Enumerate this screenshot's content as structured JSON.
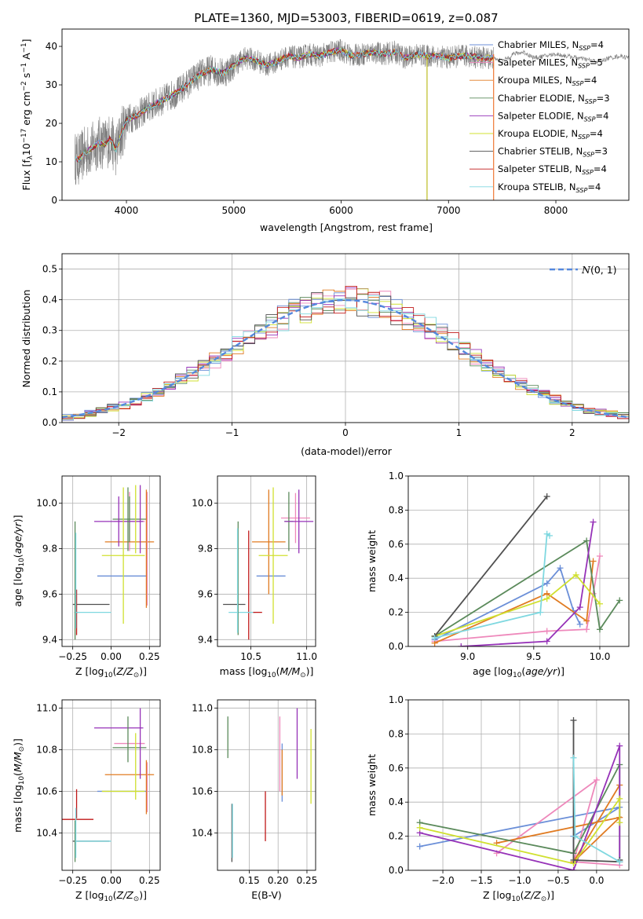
{
  "figure": {
    "title": "PLATE=1360, MJD=53003, FIBERID=0619, z=0.087"
  },
  "chart_data": [
    {
      "id": "spectrum",
      "type": "line",
      "xlabel": "wavelength [Angstrom, rest frame]",
      "ylabel_parts": [
        "Flux [f",
        "λ",
        "10",
        "−17",
        " erg cm",
        "−2",
        " s",
        "−1",
        " A",
        "−1",
        "]"
      ],
      "xlim": [
        3400,
        8680
      ],
      "ylim": [
        0,
        44.5
      ],
      "xticks": [
        4000,
        5000,
        6000,
        7000,
        8000
      ],
      "yticks": [
        0,
        10,
        20,
        30,
        40
      ],
      "grid": false,
      "legend_placement": "upper right",
      "observed_color": "#808080",
      "data_x": [
        3520,
        3550,
        3600,
        3650,
        3700,
        3750,
        3800,
        3850,
        3900,
        3950,
        4000,
        4100,
        4200,
        4300,
        4400,
        4500,
        4600,
        4700,
        4800,
        4900,
        5000,
        5100,
        5200,
        5300,
        5400,
        5500,
        5600,
        5700,
        5800,
        5900,
        6000,
        6100,
        6200,
        6300,
        6400,
        6500,
        6600,
        6700,
        6800,
        6900,
        7000,
        7100,
        7200,
        7300,
        7420
      ],
      "data_y": [
        11,
        10.5,
        12,
        13,
        14,
        15,
        14.5,
        16,
        13,
        17,
        21,
        22,
        24,
        25.5,
        27,
        28.5,
        31,
        33,
        34,
        33,
        35,
        37,
        36.5,
        35,
        36,
        37.5,
        37,
        38,
        37.5,
        38.5,
        39,
        37.5,
        38,
        38.5,
        38,
        38.5,
        37,
        38,
        37.5,
        37.5,
        37,
        37.5,
        37.5,
        37,
        37
      ],
      "obs_ext_x": [
        7420,
        7500,
        7600,
        7700,
        7800,
        7900,
        8000,
        8100,
        8200,
        8300,
        8400,
        8500,
        8600,
        8680
      ],
      "obs_ext_y": [
        37,
        36,
        38,
        38.5,
        37,
        37.5,
        38,
        37.5,
        37,
        36.5,
        36,
        37,
        37.5,
        37
      ],
      "dropouts": [
        {
          "x": 6800,
          "color": "#bcbd22"
        },
        {
          "x": 7420,
          "color": "#ee7733"
        }
      ],
      "series": [
        {
          "name_parts": [
            "Chabrier MILES, N",
            "SSP",
            "=4"
          ],
          "color": "#6b8fd8"
        },
        {
          "name_parts": [
            "Salpeter MILES, N",
            "SSP",
            "=5"
          ],
          "color": "#ee88bb"
        },
        {
          "name_parts": [
            "Kroupa MILES, N",
            "SSP",
            "=4"
          ],
          "color": "#e07b22"
        },
        {
          "name_parts": [
            "Chabrier ELODIE, N",
            "SSP",
            "=3"
          ],
          "color": "#5b8a5b"
        },
        {
          "name_parts": [
            "Salpeter ELODIE, N",
            "SSP",
            "=4"
          ],
          "color": "#9632b8"
        },
        {
          "name_parts": [
            "Kroupa ELODIE, N",
            "SSP",
            "=4"
          ],
          "color": "#d0e030"
        },
        {
          "name_parts": [
            "Chabrier STELIB, N",
            "SSP",
            "=3"
          ],
          "color": "#505050"
        },
        {
          "name_parts": [
            "Salpeter STELIB, N",
            "SSP",
            "=4"
          ],
          "color": "#c01818"
        },
        {
          "name_parts": [
            "Kroupa STELIB, N",
            "SSP",
            "=4"
          ],
          "color": "#7fd8e0"
        }
      ]
    },
    {
      "id": "residuals",
      "type": "histogram",
      "xlabel": "(data-model)/error",
      "ylabel": "Normed distribution",
      "xlim": [
        -2.5,
        2.5
      ],
      "ylim": [
        0,
        0.55
      ],
      "xticks": [
        -2,
        -1,
        0,
        1,
        2
      ],
      "yticks": [
        0.0,
        0.1,
        0.2,
        0.3,
        0.4,
        0.5
      ],
      "grid": true,
      "legend_label_main": "N",
      "legend_label_rest": "(0, 1)",
      "bin_width": 0.1,
      "gaussian_color": "#5588dd",
      "series_colors": [
        "#6b8fd8",
        "#ee88bb",
        "#e07b22",
        "#5b8a5b",
        "#9632b8",
        "#d0e030",
        "#505050",
        "#c01818",
        "#7fd8e0"
      ]
    },
    {
      "id": "age-vs-z",
      "type": "errorbar",
      "xlabel_parts": [
        "Z [log",
        "10",
        "(",
        "Z/Z",
        "⊙",
        ")]"
      ],
      "ylabel_parts": [
        "age  [log",
        "10",
        "(",
        "age/yr",
        ")]"
      ],
      "xlim": [
        -0.32,
        0.32
      ],
      "ylim": [
        9.37,
        10.12
      ],
      "xticks": [
        -0.25,
        0.0,
        0.25
      ],
      "xtick_labels": [
        "−0.25",
        "0.00",
        "0.25"
      ],
      "yticks": [
        9.4,
        9.6,
        9.8,
        10.0
      ],
      "grid": true,
      "points": [
        {
          "x": 0.07,
          "xerr": 0.16,
          "y": 9.68,
          "yerr": 0.0,
          "color": "#6b8fd8"
        },
        {
          "x": 0.12,
          "xerr": 0.1,
          "y": 9.92,
          "yerr": 0.13,
          "color": "#ee88bb"
        },
        {
          "x": 0.12,
          "xerr": 0.16,
          "y": 9.83,
          "yerr": 0.0,
          "color": "#e07b22"
        },
        {
          "x": 0.12,
          "xerr": 0.11,
          "y": 9.93,
          "yerr": 0.1,
          "color": "#5b8a5b"
        },
        {
          "x": 0.05,
          "xerr": 0.16,
          "y": 9.92,
          "yerr": 0.11,
          "color": "#9632b8"
        },
        {
          "x": 0.08,
          "xerr": 0.14,
          "y": 9.77,
          "yerr": 0.3,
          "color": "#d0e030"
        },
        {
          "x": -0.13,
          "xerr": 0.12,
          "y": 9.555,
          "yerr": 0.0,
          "color": "#505050"
        },
        {
          "x": -0.225,
          "xerr": 0.01,
          "y": 9.52,
          "yerr": 0.1,
          "color": "#c01818"
        },
        {
          "x": -0.12,
          "xerr": 0.12,
          "y": 9.52,
          "yerr": 0.0,
          "color": "#7fd8e0"
        },
        {
          "x": -0.235,
          "xerr": 0.0,
          "y": 9.66,
          "yerr": 0.26,
          "color": "#5b8a5b"
        },
        {
          "x": -0.23,
          "xerr": 0.0,
          "y": 9.66,
          "yerr": 0.21,
          "color": "#7fd8e0"
        },
        {
          "x": 0.235,
          "xerr": 0.0,
          "y": 9.8,
          "yerr": 0.25,
          "color": "#ee88bb"
        },
        {
          "x": 0.23,
          "xerr": 0.0,
          "y": 9.8,
          "yerr": 0.26,
          "color": "#e07b22"
        },
        {
          "x": 0.19,
          "xerr": 0.0,
          "y": 9.93,
          "yerr": 0.15,
          "color": "#9632b8"
        },
        {
          "x": 0.16,
          "xerr": 0.0,
          "y": 9.93,
          "yerr": 0.15,
          "color": "#d0e030"
        },
        {
          "x": 0.11,
          "xerr": 0.0,
          "y": 9.93,
          "yerr": 0.14,
          "color": "#5b8a5b"
        }
      ]
    },
    {
      "id": "age-vs-mass",
      "type": "errorbar",
      "xlabel_parts": [
        "mass [log",
        "10",
        "(",
        "M/M",
        "⊙",
        ")]"
      ],
      "xlim": [
        10.2,
        11.08
      ],
      "ylim": [
        9.37,
        10.12
      ],
      "xticks": [
        10.5,
        11.0
      ],
      "yticks": [
        9.4,
        9.6,
        9.8,
        10.0
      ],
      "grid": true,
      "points": [
        {
          "x": 10.68,
          "xerr": 0.13,
          "y": 9.68,
          "yerr": 0.0,
          "color": "#6b8fd8"
        },
        {
          "x": 10.9,
          "xerr": 0.13,
          "y": 9.935,
          "yerr": 0.11,
          "color": "#ee88bb"
        },
        {
          "x": 10.66,
          "xerr": 0.15,
          "y": 9.83,
          "yerr": 0.23,
          "color": "#e07b22"
        },
        {
          "x": 10.84,
          "xerr": 0.04,
          "y": 9.92,
          "yerr": 0.13,
          "color": "#5b8a5b"
        },
        {
          "x": 10.93,
          "xerr": 0.13,
          "y": 9.92,
          "yerr": 0.14,
          "color": "#9632b8"
        },
        {
          "x": 10.7,
          "xerr": 0.13,
          "y": 9.77,
          "yerr": 0.3,
          "color": "#d0e030"
        },
        {
          "x": 10.35,
          "xerr": 0.1,
          "y": 9.555,
          "yerr": 0.0,
          "color": "#505050"
        },
        {
          "x": 10.48,
          "xerr": 0.0,
          "y": 9.64,
          "yerr": 0.24,
          "color": "#c01818"
        },
        {
          "x": 10.42,
          "xerr": 0.12,
          "y": 9.52,
          "yerr": 0.0,
          "color": "#7fd8e0"
        },
        {
          "x": 10.56,
          "xerr": 0.04,
          "y": 9.52,
          "yerr": 0.0,
          "color": "#c01818"
        },
        {
          "x": 10.385,
          "xerr": 0.0,
          "y": 9.67,
          "yerr": 0.25,
          "color": "#5b8a5b"
        },
        {
          "x": 10.38,
          "xerr": 0.0,
          "y": 9.66,
          "yerr": 0.23,
          "color": "#7fd8e0"
        }
      ]
    },
    {
      "id": "weight-vs-age",
      "type": "line",
      "xlabel_parts": [
        "age  [log",
        "10",
        "(",
        "age/yr",
        ")]"
      ],
      "ylabel": "mass weight",
      "xlim": [
        8.55,
        10.22
      ],
      "ylim": [
        0,
        1.0
      ],
      "xticks": [
        9.0,
        9.5,
        10.0
      ],
      "yticks": [
        0.0,
        0.2,
        0.4,
        0.6,
        0.8,
        1.0
      ],
      "grid": true,
      "series": [
        {
          "color": "#6b8fd8",
          "x": [
            8.75,
            9.6,
            9.7,
            9.8,
            9.85
          ],
          "y": [
            0.04,
            0.37,
            0.46,
            0.21,
            0.13
          ]
        },
        {
          "color": "#ee88bb",
          "x": [
            8.75,
            9.6,
            9.9,
            9.95,
            10.0
          ],
          "y": [
            0.03,
            0.09,
            0.1,
            0.31,
            0.53
          ]
        },
        {
          "color": "#e07b22",
          "x": [
            8.75,
            9.6,
            9.9,
            9.95
          ],
          "y": [
            0.02,
            0.31,
            0.15,
            0.5
          ]
        },
        {
          "color": "#5b8a5b",
          "x": [
            8.75,
            9.9,
            10.0,
            10.15
          ],
          "y": [
            0.06,
            0.62,
            0.1,
            0.27
          ]
        },
        {
          "color": "#9632b8",
          "x": [
            8.95,
            9.6,
            9.85,
            9.95
          ],
          "y": [
            0.0,
            0.03,
            0.23,
            0.73
          ]
        },
        {
          "color": "#d0e030",
          "x": [
            8.75,
            9.6,
            9.82,
            10.0
          ],
          "y": [
            0.06,
            0.28,
            0.42,
            0.25
          ]
        },
        {
          "color": "#505050",
          "x": [
            8.75,
            9.6
          ],
          "y": [
            0.06,
            0.88
          ]
        },
        {
          "color": "#7fd8e0",
          "x": [
            8.75,
            9.55,
            9.6,
            9.62
          ],
          "y": [
            0.05,
            0.2,
            0.66,
            0.65
          ]
        }
      ]
    },
    {
      "id": "mass-vs-z",
      "type": "errorbar",
      "xlabel_parts": [
        "Z [log",
        "10",
        "(",
        "Z/Z",
        "⊙",
        ")]"
      ],
      "ylabel_parts": [
        "mass [log",
        "10",
        "(",
        "M/M",
        "⊙",
        ")]"
      ],
      "xlim": [
        -0.32,
        0.32
      ],
      "ylim": [
        10.22,
        11.04
      ],
      "xticks": [
        -0.25,
        0.0,
        0.25
      ],
      "xtick_labels": [
        "−0.25",
        "0.00",
        "0.25"
      ],
      "yticks": [
        10.4,
        10.6,
        10.8,
        11.0
      ],
      "grid": true,
      "points": [
        {
          "x": 0.07,
          "xerr": 0.16,
          "y": 10.6,
          "yerr": 0.0,
          "color": "#6b8fd8"
        },
        {
          "x": 0.12,
          "xerr": 0.1,
          "y": 10.83,
          "yerr": 0.0,
          "color": "#ee88bb"
        },
        {
          "x": 0.12,
          "xerr": 0.16,
          "y": 10.68,
          "yerr": 0.0,
          "color": "#e07b22"
        },
        {
          "x": 0.12,
          "xerr": 0.11,
          "y": 10.81,
          "yerr": 0.0,
          "color": "#5b8a5b"
        },
        {
          "x": 0.05,
          "xerr": 0.16,
          "y": 10.905,
          "yerr": 0.0,
          "color": "#9632b8"
        },
        {
          "x": 0.08,
          "xerr": 0.14,
          "y": 10.6,
          "yerr": 0.0,
          "color": "#d0e030"
        },
        {
          "x": -0.13,
          "xerr": 0.12,
          "y": 10.36,
          "yerr": 0.0,
          "color": "#505050"
        },
        {
          "x": -0.225,
          "xerr": 0.11,
          "y": 10.465,
          "yerr": 0.0,
          "color": "#c01818"
        },
        {
          "x": -0.12,
          "xerr": 0.12,
          "y": 10.36,
          "yerr": 0.0,
          "color": "#7fd8e0"
        },
        {
          "x": 0.11,
          "xerr": 0.0,
          "y": 10.85,
          "yerr": 0.11,
          "color": "#5b8a5b"
        },
        {
          "x": 0.16,
          "xerr": 0.0,
          "y": 10.72,
          "yerr": 0.16,
          "color": "#d0e030"
        },
        {
          "x": 0.19,
          "xerr": 0.0,
          "y": 10.83,
          "yerr": 0.17,
          "color": "#9632b8"
        },
        {
          "x": 0.235,
          "xerr": 0.0,
          "y": 10.62,
          "yerr": 0.12,
          "color": "#ee88bb"
        },
        {
          "x": 0.23,
          "xerr": 0.0,
          "y": 10.62,
          "yerr": 0.13,
          "color": "#e07b22"
        },
        {
          "x": -0.225,
          "xerr": 0.0,
          "y": 10.54,
          "yerr": 0.07,
          "color": "#c01818"
        },
        {
          "x": -0.235,
          "xerr": 0.0,
          "y": 10.36,
          "yerr": 0.1,
          "color": "#5b8a5b"
        },
        {
          "x": -0.23,
          "xerr": 0.0,
          "y": 10.4,
          "yerr": 0.12,
          "color": "#7fd8e0"
        }
      ]
    },
    {
      "id": "mass-vs-ebv",
      "type": "errorbar",
      "xlabel": "E(B-V)",
      "xlim": [
        0.095,
        0.265
      ],
      "ylim": [
        10.22,
        11.04
      ],
      "xticks": [
        0.15,
        0.2,
        0.25
      ],
      "xtick_labels": [
        "0.15",
        "0.20",
        "0.25"
      ],
      "yticks": [
        10.4,
        10.6,
        10.8,
        11.0
      ],
      "grid": true,
      "points": [
        {
          "x": 0.113,
          "y": 10.86,
          "yerr": 0.1,
          "color": "#5b8a5b"
        },
        {
          "x": 0.12,
          "y": 10.4,
          "yerr": 0.14,
          "color": "#505050"
        },
        {
          "x": 0.121,
          "y": 10.41,
          "yerr": 0.13,
          "color": "#7fd8e0"
        },
        {
          "x": 0.178,
          "y": 10.48,
          "yerr": 0.12,
          "color": "#c01818"
        },
        {
          "x": 0.203,
          "y": 10.78,
          "yerr": 0.18,
          "color": "#ee88bb"
        },
        {
          "x": 0.207,
          "y": 10.69,
          "yerr": 0.14,
          "color": "#6b8fd8"
        },
        {
          "x": 0.207,
          "y": 10.69,
          "yerr": 0.11,
          "color": "#e07b22"
        },
        {
          "x": 0.233,
          "y": 10.83,
          "yerr": 0.17,
          "color": "#9632b8"
        },
        {
          "x": 0.257,
          "y": 10.72,
          "yerr": 0.18,
          "color": "#d0e030"
        }
      ]
    },
    {
      "id": "weight-vs-z",
      "type": "line",
      "xlabel_parts": [
        "Z [log",
        "10",
        "(",
        "Z/Z",
        "⊙",
        ")]"
      ],
      "ylabel": "mass weight",
      "xlim": [
        -2.45,
        0.42
      ],
      "ylim": [
        0,
        1.0
      ],
      "xticks": [
        -2.0,
        -1.5,
        -1.0,
        -0.5,
        0.0
      ],
      "xtick_labels": [
        "−2.0",
        "−1.5",
        "−1.0",
        "−0.5",
        "0.0"
      ],
      "yticks": [
        0.0,
        0.2,
        0.4,
        0.6,
        0.8,
        1.0
      ],
      "grid": true,
      "series": [
        {
          "color": "#6b8fd8",
          "x": [
            -2.3,
            0.3,
            -0.3,
            -0.3
          ],
          "y": [
            0.14,
            0.37,
            0.2,
            0.05
          ]
        },
        {
          "color": "#ee88bb",
          "x": [
            -1.3,
            0.0,
            -0.3,
            0.3
          ],
          "y": [
            0.1,
            0.53,
            0.05,
            0.03
          ]
        },
        {
          "color": "#e07b22",
          "x": [
            -1.3,
            0.3,
            -0.3,
            0.3
          ],
          "y": [
            0.16,
            0.31,
            0.05,
            0.5
          ]
        },
        {
          "color": "#5b8a5b",
          "x": [
            -2.3,
            -0.3,
            0.3,
            0.3
          ],
          "y": [
            0.28,
            0.1,
            0.62,
            0.06
          ]
        },
        {
          "color": "#9632b8",
          "x": [
            -2.3,
            -0.3,
            0.3,
            0.3
          ],
          "y": [
            0.22,
            0.0,
            0.73,
            0.05
          ]
        },
        {
          "color": "#d0e030",
          "x": [
            -2.3,
            -0.3,
            0.3,
            0.3
          ],
          "y": [
            0.25,
            0.04,
            0.42,
            0.28
          ]
        },
        {
          "color": "#505050",
          "x": [
            -0.3,
            -0.3,
            0.3,
            0.3
          ],
          "y": [
            0.88,
            0.06,
            0.05,
            0.06
          ]
        },
        {
          "color": "#7fd8e0",
          "x": [
            -0.3,
            -0.28,
            0.3
          ],
          "y": [
            0.66,
            0.2,
            0.05
          ]
        }
      ]
    }
  ]
}
